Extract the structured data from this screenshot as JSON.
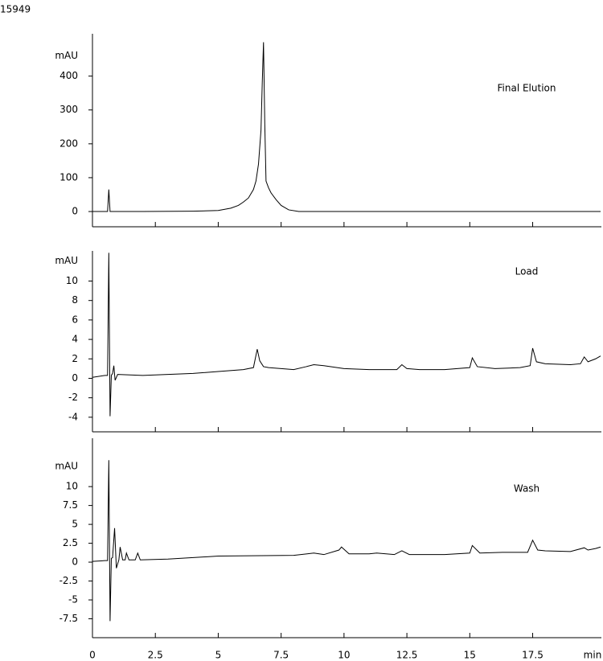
{
  "label": "15949",
  "chart_data": [
    {
      "type": "line",
      "annotation": "Final Elution",
      "ylabel": "mAU",
      "color": "#000000",
      "xlim": [
        0,
        20.2
      ],
      "xticks": [
        0,
        2.5,
        5,
        7.5,
        10,
        12.5,
        15,
        17.5
      ],
      "xtick_labels": false,
      "ylim": [
        -45,
        525
      ],
      "yticks": [
        0,
        100,
        200,
        300,
        400
      ],
      "x": [
        0,
        0.6,
        0.65,
        0.7,
        0.8,
        2,
        4,
        5,
        5.5,
        5.8,
        6.0,
        6.2,
        6.4,
        6.5,
        6.6,
        6.7,
        6.75,
        6.8,
        6.85,
        6.9,
        7.0,
        7.1,
        7.3,
        7.5,
        7.8,
        8.2,
        10,
        15,
        20.2
      ],
      "values": [
        0,
        0,
        65,
        0,
        0,
        0,
        1,
        3,
        10,
        18,
        28,
        40,
        65,
        90,
        140,
        240,
        380,
        500,
        260,
        90,
        70,
        55,
        35,
        18,
        5,
        0,
        0,
        0,
        0
      ]
    },
    {
      "type": "line",
      "annotation": "Load",
      "ylabel": "mAU",
      "color": "#000000",
      "xlim": [
        0,
        20.2
      ],
      "xticks": [
        0,
        2.5,
        5,
        7.5,
        10,
        12.5,
        15,
        17.5
      ],
      "xtick_labels": false,
      "ylim": [
        -5.5,
        13.1
      ],
      "yticks": [
        -4,
        -2,
        0,
        2,
        4,
        6,
        8,
        10
      ],
      "x": [
        0,
        0.5,
        0.6,
        0.65,
        0.7,
        0.75,
        0.8,
        0.85,
        0.9,
        1.0,
        2,
        3,
        4,
        5,
        6,
        6.4,
        6.55,
        6.65,
        6.8,
        7,
        8,
        8.5,
        8.8,
        9.2,
        10,
        11,
        12.1,
        12.3,
        12.5,
        13,
        14,
        15.0,
        15.1,
        15.3,
        16,
        17,
        17.4,
        17.5,
        17.65,
        18,
        19,
        19.4,
        19.55,
        19.7,
        20,
        20.2
      ],
      "values": [
        0.1,
        0.3,
        0.3,
        12.9,
        -3.9,
        0.3,
        0.5,
        1.3,
        -0.2,
        0.4,
        0.3,
        0.4,
        0.5,
        0.7,
        0.9,
        1.1,
        3.0,
        1.8,
        1.2,
        1.1,
        0.9,
        1.2,
        1.4,
        1.3,
        1.0,
        0.9,
        0.9,
        1.4,
        1.0,
        0.9,
        0.9,
        1.1,
        2.1,
        1.2,
        1.0,
        1.1,
        1.3,
        3.1,
        1.7,
        1.5,
        1.4,
        1.5,
        2.2,
        1.7,
        2.0,
        2.3
      ]
    },
    {
      "type": "line",
      "annotation": "Wash",
      "ylabel": "mAU",
      "xlabel": "min",
      "color": "#000000",
      "xlim": [
        0,
        20.2
      ],
      "xticks": [
        0,
        2.5,
        5,
        7.5,
        10,
        12.5,
        15,
        17.5
      ],
      "xtick_labels": true,
      "ylim": [
        -10,
        16.4
      ],
      "yticks": [
        -7.5,
        -5,
        -2.5,
        0,
        2.5,
        5,
        7.5,
        10
      ],
      "x": [
        0,
        0.5,
        0.6,
        0.65,
        0.7,
        0.75,
        0.8,
        0.88,
        0.95,
        1.05,
        1.1,
        1.2,
        1.3,
        1.35,
        1.45,
        1.7,
        1.8,
        1.9,
        3,
        5,
        8,
        8.8,
        9.2,
        9.8,
        9.9,
        10.2,
        11,
        11.3,
        12,
        12.3,
        12.6,
        14,
        15.0,
        15.1,
        15.4,
        16.3,
        17.3,
        17.5,
        17.7,
        18,
        19,
        19.55,
        19.7,
        20,
        20.2
      ],
      "values": [
        0.1,
        0.2,
        0.2,
        13.5,
        -7.8,
        0.5,
        0.6,
        4.5,
        -0.8,
        0.3,
        2.0,
        0.3,
        0.3,
        1.2,
        0.3,
        0.3,
        1.2,
        0.3,
        0.4,
        0.8,
        0.9,
        1.2,
        1.0,
        1.6,
        2.0,
        1.1,
        1.1,
        1.2,
        1.0,
        1.5,
        1.0,
        1.0,
        1.2,
        2.2,
        1.2,
        1.3,
        1.3,
        2.9,
        1.6,
        1.5,
        1.4,
        1.9,
        1.6,
        1.8,
        2.0
      ]
    }
  ]
}
